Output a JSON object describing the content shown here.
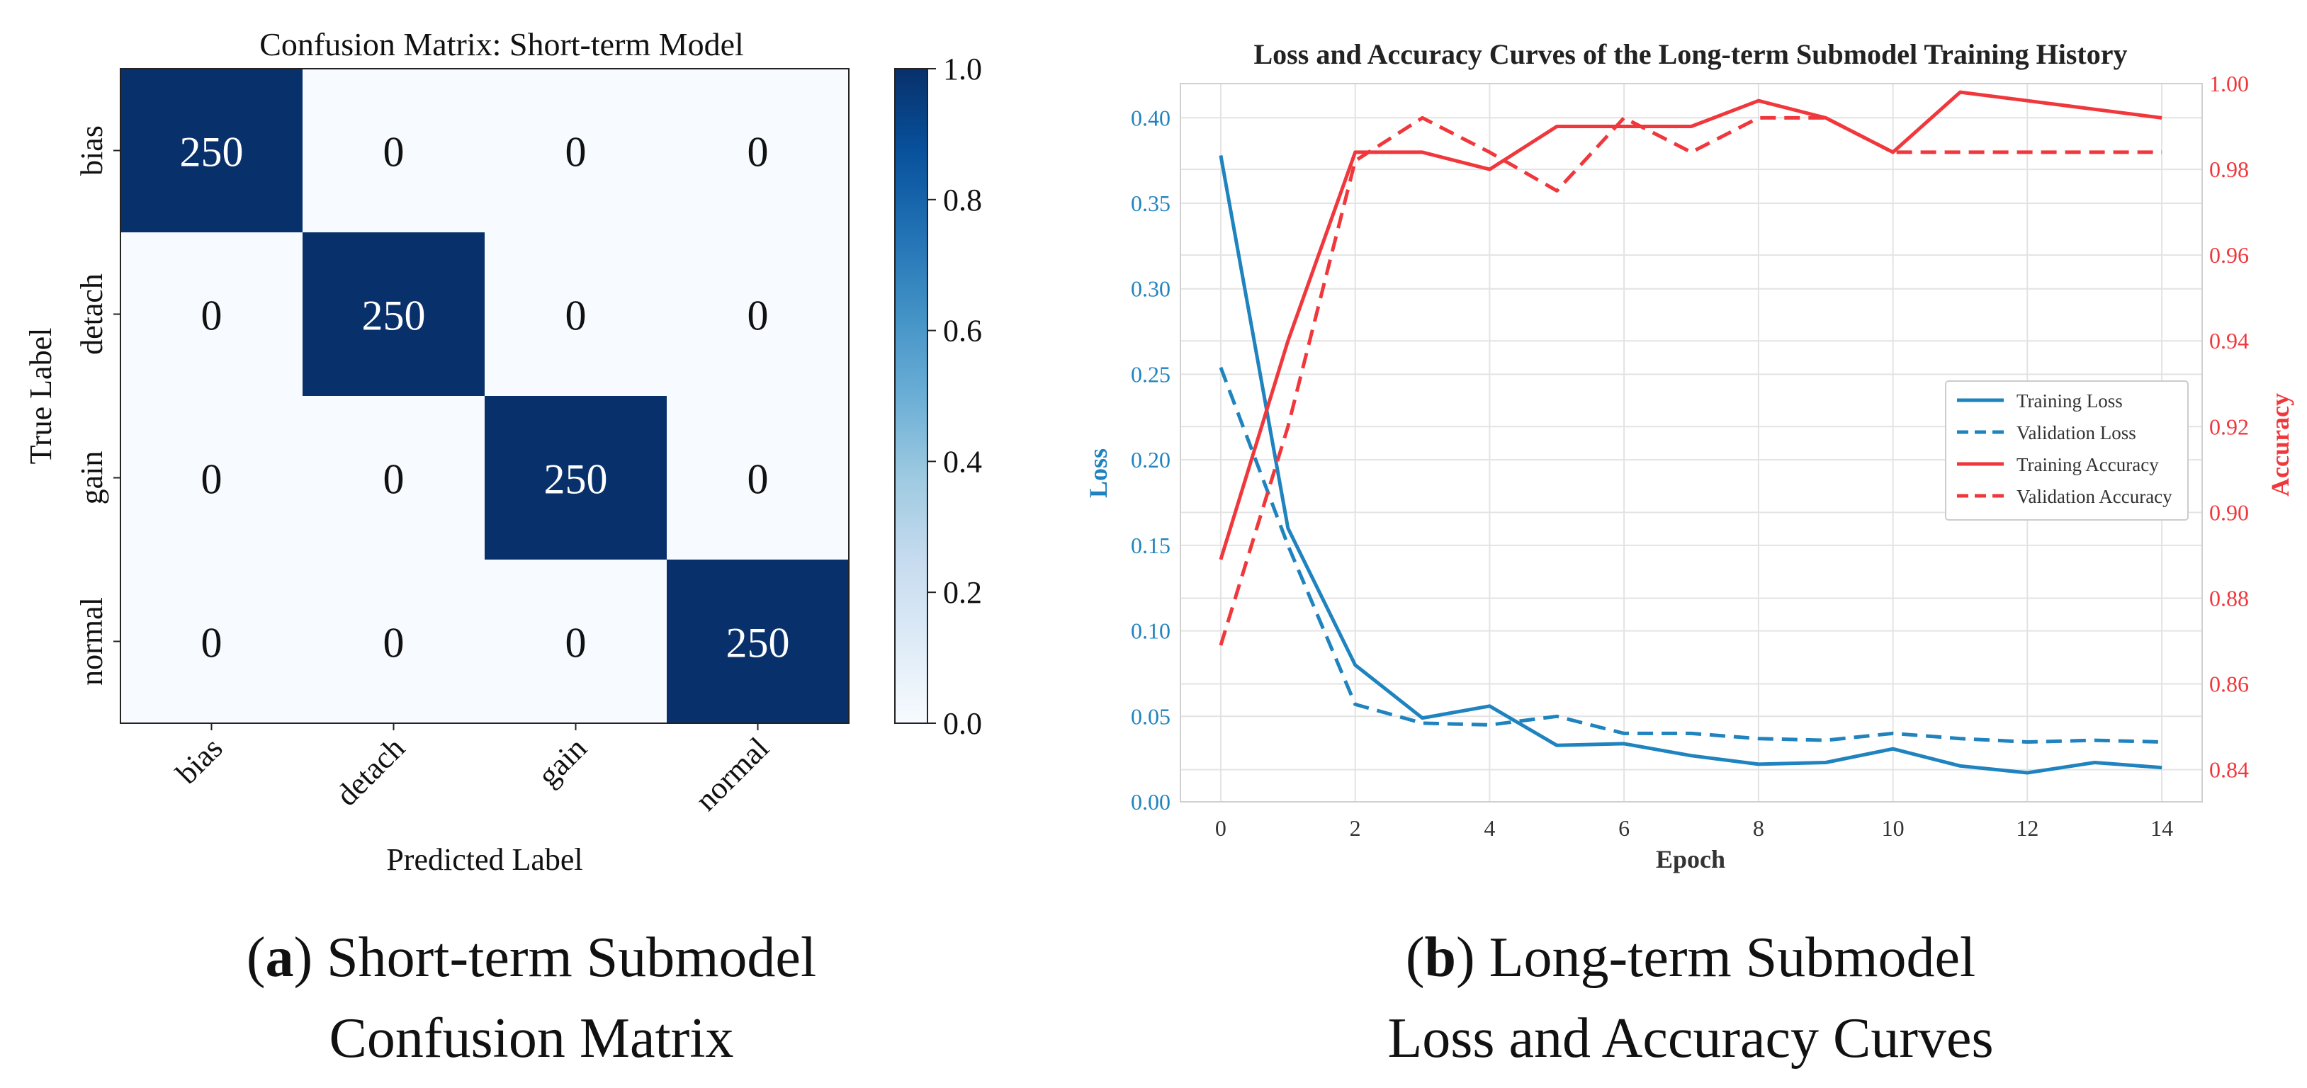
{
  "colors": {
    "cm_low": "#f7fbff",
    "cm_high": "#08306b",
    "loss": "#1f83bf",
    "accuracy": "#f0383c",
    "grid": "#e3e3e3",
    "axis_dark": "#444444"
  },
  "panel_a": {
    "caption_letter": "a",
    "caption_line1": "Short-term Submodel",
    "caption_line2": "Confusion Matrix"
  },
  "panel_b": {
    "caption_letter": "b",
    "caption_line1": "Long-term Submodel",
    "caption_line2": "Loss and Accuracy Curves"
  },
  "chart_data": [
    {
      "type": "heatmap",
      "title": "Confusion Matrix: Short-term Model",
      "xlabel": "Predicted Label",
      "ylabel": "True Label",
      "x_categories": [
        "bias",
        "detach",
        "gain",
        "normal"
      ],
      "y_categories": [
        "bias",
        "detach",
        "gain",
        "normal"
      ],
      "values": [
        [
          250,
          0,
          0,
          0
        ],
        [
          0,
          250,
          0,
          0
        ],
        [
          0,
          0,
          250,
          0
        ],
        [
          0,
          0,
          0,
          250
        ]
      ],
      "normalized": [
        [
          1,
          0,
          0,
          0
        ],
        [
          0,
          1,
          0,
          0
        ],
        [
          0,
          0,
          1,
          0
        ],
        [
          0,
          0,
          0,
          1
        ]
      ],
      "colorbar": {
        "range": [
          0.0,
          1.0
        ],
        "ticks": [
          "0.0",
          "0.2",
          "0.4",
          "0.6",
          "0.8",
          "1.0"
        ],
        "colormap": "Blues"
      }
    },
    {
      "type": "line",
      "title": "Loss and Accuracy Curves of the Long-term Submodel Training History",
      "xlabel": "Epoch",
      "ylabel": "Loss",
      "y2label": "Accuracy",
      "x": [
        0,
        1,
        2,
        3,
        4,
        5,
        6,
        7,
        8,
        9,
        10,
        11,
        12,
        13,
        14
      ],
      "xlim": [
        -0.6,
        14.6
      ],
      "ylim": [
        0.0,
        0.42
      ],
      "y2lim": [
        0.8325,
        1.0
      ],
      "x_ticks": [
        "0",
        "2",
        "4",
        "6",
        "8",
        "10",
        "12",
        "14"
      ],
      "y_ticks": [
        "0.00",
        "0.05",
        "0.10",
        "0.15",
        "0.20",
        "0.25",
        "0.30",
        "0.35",
        "0.40"
      ],
      "y2_ticks": [
        "0.84",
        "0.86",
        "0.88",
        "0.90",
        "0.92",
        "0.94",
        "0.96",
        "0.98",
        "1.00"
      ],
      "grid": true,
      "legend": "center-right",
      "series": [
        {
          "name": "Training Loss",
          "axis": "left",
          "style": "solid",
          "values": [
            0.378,
            0.16,
            0.08,
            0.049,
            0.056,
            0.033,
            0.034,
            0.027,
            0.022,
            0.023,
            0.031,
            0.021,
            0.017,
            0.023,
            0.02
          ]
        },
        {
          "name": "Validation Loss",
          "axis": "left",
          "style": "dashed",
          "values": [
            0.254,
            0.15,
            0.057,
            0.046,
            0.045,
            0.05,
            0.04,
            0.04,
            0.037,
            0.036,
            0.04,
            0.037,
            0.035,
            0.036,
            0.035
          ]
        },
        {
          "name": "Training Accuracy",
          "axis": "right",
          "style": "solid",
          "values": [
            0.889,
            0.94,
            0.984,
            0.984,
            0.98,
            0.99,
            0.99,
            0.99,
            0.996,
            0.992,
            0.984,
            0.998,
            0.996,
            0.994,
            0.992
          ]
        },
        {
          "name": "Validation Accuracy",
          "axis": "right",
          "style": "dashed",
          "values": [
            0.869,
            0.92,
            0.982,
            0.992,
            0.984,
            0.975,
            0.992,
            0.984,
            0.992,
            0.992,
            0.984,
            0.984,
            0.984,
            0.984,
            0.984
          ]
        }
      ]
    }
  ]
}
